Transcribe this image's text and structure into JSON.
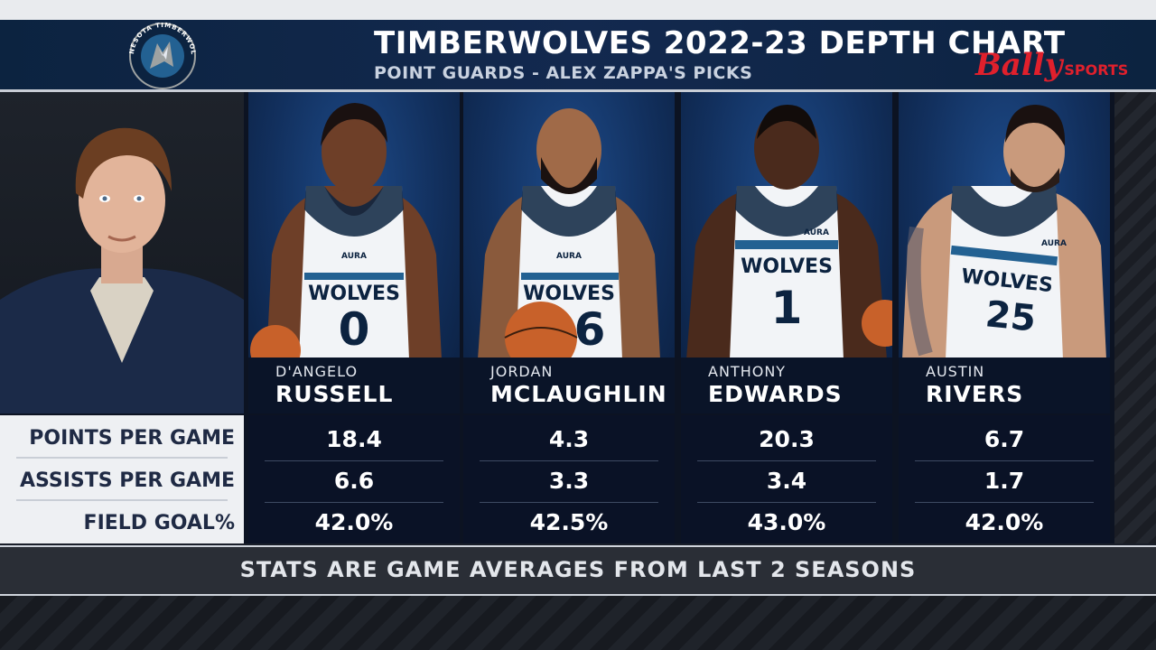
{
  "header": {
    "title": "TIMBERWOLVES 2022-23 DEPTH CHART",
    "subtitle": "POINT GUARDS - ALEX ZAPPA'S PICKS",
    "logo_text": "MINNESOTA TIMBERWOLVES",
    "network_script": "Bally",
    "network_word": "SPORTS"
  },
  "stat_labels": [
    "POINTS PER GAME",
    "ASSISTS PER GAME",
    "FIELD GOAL%"
  ],
  "players": [
    {
      "first": "D'ANGELO",
      "last": "RUSSELL",
      "jersey": "WOLVES",
      "number": "0",
      "sponsor": "AURA",
      "stats": [
        "18.4",
        "6.6",
        "42.0%"
      ]
    },
    {
      "first": "JORDAN",
      "last": "MCLAUGHLIN",
      "jersey": "WOLVES",
      "number": "6",
      "sponsor": "AURA",
      "stats": [
        "4.3",
        "3.3",
        "42.5%"
      ]
    },
    {
      "first": "ANTHONY",
      "last": "EDWARDS",
      "jersey": "WOLVES",
      "number": "1",
      "sponsor": "AURA",
      "stats": [
        "20.3",
        "3.4",
        "43.0%"
      ]
    },
    {
      "first": "AUSTIN",
      "last": "RIVERS",
      "jersey": "WOLVES",
      "number": "25",
      "sponsor": "AURA",
      "stats": [
        "6.7",
        "1.7",
        "42.0%"
      ]
    }
  ],
  "footer": "STATS ARE GAME AVERAGES FROM LAST 2 SEASONS",
  "colors": {
    "navy": "#0c2340",
    "panel_blue": "#12305e",
    "jersey_white": "#f2f4f7",
    "brand_red": "#e0202c",
    "ball_orange": "#c8612a"
  }
}
